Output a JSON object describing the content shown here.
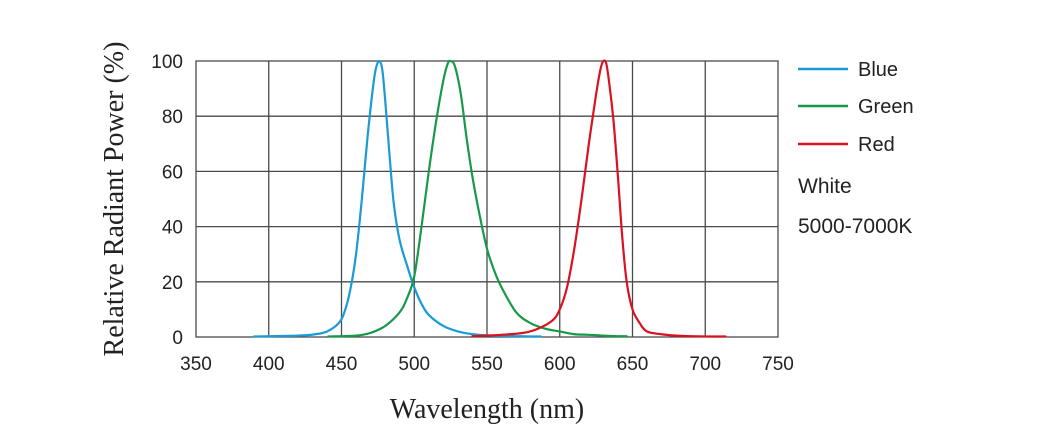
{
  "chart_data": {
    "type": "line",
    "xlabel": "Wavelength (nm)",
    "ylabel": "Relative Radiant Power (%)",
    "xlim": [
      350,
      750
    ],
    "ylim": [
      0,
      100
    ],
    "xticks": [
      350,
      400,
      450,
      500,
      550,
      600,
      650,
      700,
      750
    ],
    "yticks": [
      0,
      20,
      40,
      60,
      80,
      100
    ],
    "grid": true,
    "legend_position": "right",
    "series": [
      {
        "name": "Blue",
        "color": "#1a9ad6",
        "x": [
          390,
          420,
          432,
          440,
          448,
          452,
          456,
          460,
          464,
          468,
          472,
          474,
          476,
          478,
          480,
          483,
          486,
          490,
          495,
          500,
          505,
          510,
          520,
          530,
          540,
          550,
          560,
          570,
          580,
          587
        ],
        "y": [
          0.2,
          0.5,
          1,
          2,
          5,
          9,
          17,
          30,
          50,
          73,
          92,
          98,
          100,
          97,
          86,
          66,
          48,
          35,
          26,
          18,
          12,
          8,
          4,
          2,
          1,
          0.6,
          0.4,
          0.3,
          0.2,
          0.2
        ]
      },
      {
        "name": "Green",
        "color": "#169a48",
        "x": [
          441,
          460,
          470,
          480,
          490,
          495,
          500,
          505,
          510,
          515,
          520,
          523,
          525,
          528,
          532,
          536,
          540,
          545,
          550,
          555,
          560,
          570,
          580,
          590,
          600,
          610,
          620,
          630,
          640,
          646
        ],
        "y": [
          0.2,
          0.5,
          1.5,
          4,
          9,
          14,
          22,
          40,
          60,
          78,
          93,
          99,
          100,
          98,
          88,
          72,
          58,
          44,
          32,
          24,
          18,
          9,
          5,
          3,
          2,
          1,
          0.8,
          0.5,
          0.3,
          0.3
        ]
      },
      {
        "name": "Red",
        "color": "#d9121f",
        "x": [
          540,
          560,
          575,
          585,
          595,
          600,
          605,
          610,
          615,
          620,
          625,
          628,
          630,
          632,
          634,
          637,
          640,
          643,
          646,
          650,
          655,
          660,
          670,
          680,
          690,
          700,
          714
        ],
        "y": [
          0.3,
          0.8,
          1.5,
          3,
          6,
          10,
          18,
          32,
          50,
          70,
          88,
          97,
          100,
          99,
          92,
          78,
          58,
          36,
          20,
          10,
          5,
          2,
          1,
          0.5,
          0.3,
          0.2,
          0.2
        ]
      }
    ]
  },
  "legend": {
    "entries": [
      {
        "label": "Blue",
        "color": "#1a9ad6"
      },
      {
        "label": "Green",
        "color": "#169a48"
      },
      {
        "label": "Red",
        "color": "#d9121f"
      }
    ],
    "note_line1": "White",
    "note_line2": "5000-7000K"
  }
}
